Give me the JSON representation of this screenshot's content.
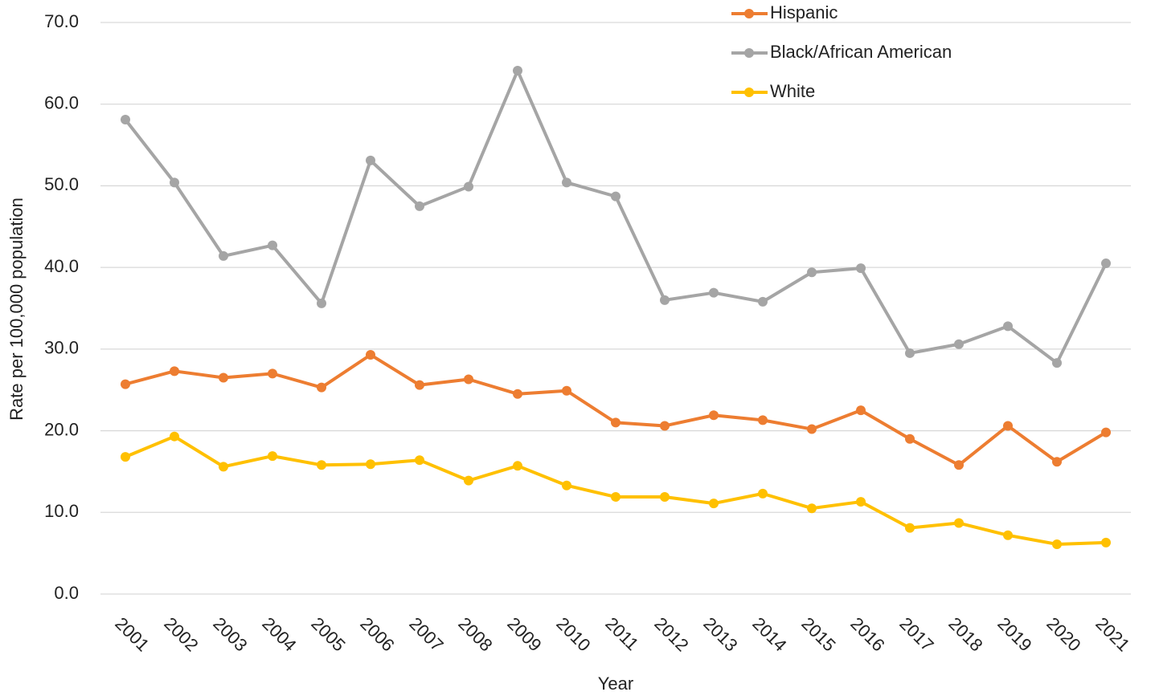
{
  "chart_data": {
    "type": "line",
    "x_label": "Year",
    "y_label": "Rate per 100,000 population",
    "categories": [
      "2001",
      "2002",
      "2003",
      "2004",
      "2005",
      "2006",
      "2007",
      "2008",
      "2009",
      "2010",
      "2011",
      "2012",
      "2013",
      "2014",
      "2015",
      "2016",
      "2017",
      "2018",
      "2019",
      "2020",
      "2021"
    ],
    "series": [
      {
        "name": "Hispanic",
        "color": "#ed7d31",
        "values": [
          25.7,
          27.3,
          26.5,
          27.0,
          25.3,
          29.3,
          25.6,
          26.3,
          24.5,
          24.9,
          21.0,
          20.6,
          21.9,
          21.3,
          20.2,
          22.5,
          19.0,
          15.8,
          20.6,
          16.2,
          19.8
        ]
      },
      {
        "name": "Black/African American",
        "color": "#a5a5a5",
        "values": [
          58.1,
          50.4,
          41.4,
          42.7,
          35.6,
          53.1,
          47.5,
          49.9,
          64.1,
          50.4,
          48.7,
          36.0,
          36.9,
          35.8,
          39.4,
          39.9,
          29.5,
          30.6,
          32.8,
          28.3,
          40.5
        ]
      },
      {
        "name": "White",
        "color": "#ffc000",
        "values": [
          16.8,
          19.3,
          15.6,
          16.9,
          15.8,
          15.9,
          16.4,
          13.9,
          15.7,
          13.3,
          11.9,
          11.9,
          11.1,
          12.3,
          10.5,
          11.3,
          8.1,
          8.7,
          7.2,
          6.1,
          6.3
        ]
      }
    ],
    "ylim": [
      0,
      70
    ],
    "yticks": [
      {
        "value": 0,
        "label": "0.0"
      },
      {
        "value": 10,
        "label": "10.0"
      },
      {
        "value": 20,
        "label": "20.0"
      },
      {
        "value": 30,
        "label": "30.0"
      },
      {
        "value": 40,
        "label": "40.0"
      },
      {
        "value": 50,
        "label": "50.0"
      },
      {
        "value": 60,
        "label": "60.0"
      },
      {
        "value": 70,
        "label": "70.0"
      }
    ],
    "grid": true,
    "legend": "top"
  }
}
